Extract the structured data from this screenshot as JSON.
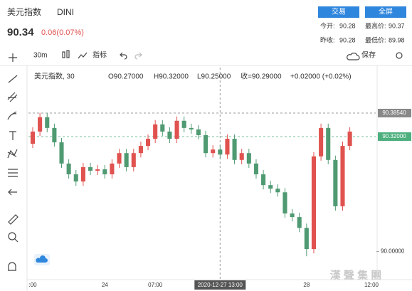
{
  "header": {
    "name": "美元指数",
    "symbol": "DINI",
    "price": "90.34",
    "change": "0.06(0.07%)",
    "buttons": [
      "交易",
      "全屏"
    ],
    "stats": [
      [
        "今开:",
        "90.28",
        "最高价:",
        "90.37"
      ],
      [
        "昨收:",
        "90.28",
        "最低价:",
        "89.98"
      ]
    ]
  },
  "toolbar": {
    "interval": "30m",
    "indicators": "指标",
    "save": "保存"
  },
  "legend": {
    "title": "美元指数, 30",
    "open": "O90.27000",
    "high": "H90.32000",
    "low": "L90.25000",
    "close": "收=90.29000",
    "change": "+0.02000 (+0.02%)"
  },
  "watermark": "漢 聲 集 團",
  "chart_data": {
    "type": "candlestick",
    "categories": [
      ":00",
      null,
      null,
      null,
      null,
      null,
      null,
      null,
      null,
      null,
      "24",
      null,
      null,
      null,
      null,
      null,
      null,
      "07:00",
      null,
      null,
      null,
      null,
      null,
      null,
      null,
      null,
      "2020-12-27 13:00",
      null,
      null,
      null,
      null,
      null,
      null,
      null,
      null,
      null,
      null,
      null,
      "28",
      null,
      null,
      null,
      null,
      null,
      null,
      null,
      null,
      "12:00"
    ],
    "open": [
      90.3,
      90.334,
      90.374,
      90.344,
      90.304,
      90.245,
      90.215,
      90.195,
      90.235,
      90.225,
      90.229,
      90.215,
      90.245,
      90.274,
      90.235,
      90.274,
      90.294,
      90.314,
      90.354,
      90.334,
      90.314,
      90.364,
      90.344,
      90.34,
      90.324,
      90.274,
      90.284,
      90.27,
      90.314,
      90.255,
      90.274,
      90.245,
      90.215,
      90.185,
      90.175,
      90.165,
      90.106,
      90.096,
      90.066,
      90.007,
      90.265,
      90.344,
      90.255,
      90.126,
      90.294,
      null,
      null,
      null
    ],
    "close": [
      90.334,
      90.374,
      90.344,
      90.304,
      90.245,
      90.215,
      90.195,
      90.235,
      90.225,
      90.229,
      90.215,
      90.245,
      90.274,
      90.235,
      90.274,
      90.294,
      90.314,
      90.354,
      90.334,
      90.314,
      90.364,
      90.344,
      90.34,
      90.324,
      90.274,
      90.284,
      90.27,
      90.314,
      90.255,
      90.274,
      90.245,
      90.215,
      90.185,
      90.175,
      90.165,
      90.106,
      90.096,
      90.066,
      90.007,
      90.265,
      90.344,
      90.255,
      90.126,
      90.294,
      90.334,
      null,
      null,
      null
    ],
    "high": [
      90.346,
      90.386,
      90.386,
      90.356,
      90.316,
      90.257,
      90.227,
      90.247,
      90.247,
      90.241,
      90.241,
      90.257,
      90.286,
      90.286,
      90.286,
      90.306,
      90.326,
      90.366,
      90.366,
      90.346,
      90.376,
      90.376,
      90.356,
      90.352,
      90.336,
      90.296,
      90.296,
      90.326,
      90.326,
      90.286,
      90.286,
      90.257,
      90.227,
      90.197,
      90.187,
      90.177,
      90.118,
      90.108,
      90.078,
      90.277,
      90.356,
      90.356,
      90.267,
      90.306,
      90.346,
      null,
      null,
      null
    ],
    "low": [
      90.288,
      90.322,
      90.332,
      90.292,
      90.233,
      90.203,
      90.183,
      90.183,
      90.213,
      90.213,
      90.203,
      90.203,
      90.233,
      90.223,
      90.223,
      90.262,
      90.282,
      90.302,
      90.322,
      90.302,
      90.302,
      90.332,
      90.328,
      90.312,
      90.262,
      90.262,
      90.258,
      90.258,
      90.243,
      90.243,
      90.233,
      90.203,
      90.173,
      90.163,
      90.153,
      90.094,
      90.084,
      90.054,
      89.987,
      89.995,
      90.253,
      90.243,
      90.114,
      90.114,
      90.282,
      null,
      null,
      null
    ],
    "up_color": "#e0524f",
    "down_color": "#4f9a72",
    "ylim": [
      89.922,
      90.512
    ],
    "yticks": [
      {
        "value": 90,
        "label": "90.00000"
      }
    ],
    "price_lines": [
      {
        "value": 90.3854,
        "label": "90.38540",
        "color": "#888888"
      },
      {
        "value": 90.32,
        "label": "90.32000",
        "color": "#4caf7d"
      }
    ]
  }
}
